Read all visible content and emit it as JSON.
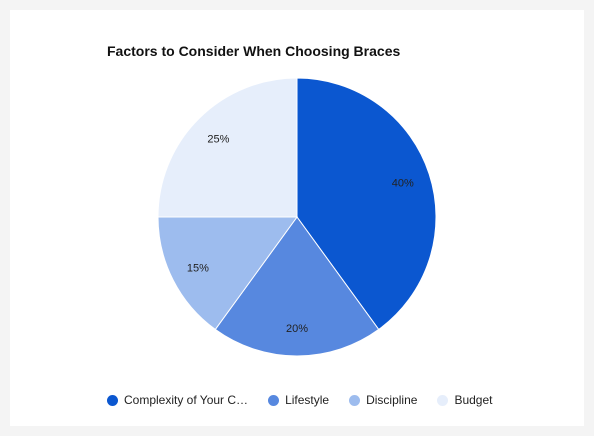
{
  "chart_data": {
    "type": "pie",
    "title": "Factors to Consider When Choosing Braces",
    "categories": [
      "Complexity of Your C…",
      "Lifestyle",
      "Discipline",
      "Budget"
    ],
    "values": [
      40,
      20,
      15,
      25
    ],
    "labels": [
      "40%",
      "20%",
      "15%",
      "25%"
    ],
    "colors": [
      "#0b57d0",
      "#5788df",
      "#9dbcee",
      "#e6eefb"
    ],
    "legend_position": "bottom"
  }
}
